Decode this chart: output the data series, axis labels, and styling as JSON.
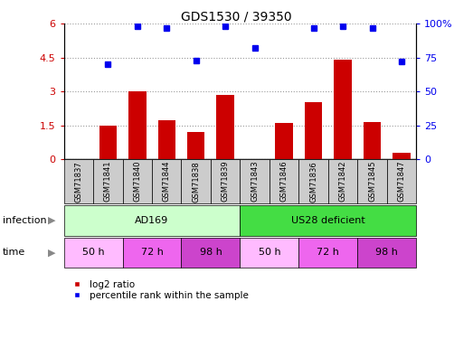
{
  "title": "GDS1530 / 39350",
  "samples": [
    "GSM71837",
    "GSM71841",
    "GSM71840",
    "GSM71844",
    "GSM71838",
    "GSM71839",
    "GSM71843",
    "GSM71846",
    "GSM71836",
    "GSM71842",
    "GSM71845",
    "GSM71847"
  ],
  "log2_ratio": [
    0.0,
    1.5,
    3.0,
    1.75,
    1.2,
    2.85,
    0.0,
    1.6,
    2.55,
    4.4,
    1.65,
    0.3
  ],
  "percentile_rank": [
    null,
    70,
    98,
    97,
    73,
    98,
    82,
    null,
    97,
    98,
    97,
    72
  ],
  "bar_color": "#cc0000",
  "dot_color": "#0000ee",
  "ylim_left": [
    0,
    6
  ],
  "ylim_right": [
    0,
    100
  ],
  "yticks_left": [
    0,
    1.5,
    3.0,
    4.5,
    6.0
  ],
  "yticks_right": [
    0,
    25,
    50,
    75,
    100
  ],
  "ytick_labels_left": [
    "0",
    "1.5",
    "3",
    "4.5",
    "6"
  ],
  "ytick_labels_right": [
    "0",
    "25",
    "50",
    "75",
    "100%"
  ],
  "infection_groups": [
    {
      "label": "AD169",
      "start": 0,
      "end": 6,
      "color": "#ccffcc"
    },
    {
      "label": "US28 deficient",
      "start": 6,
      "end": 12,
      "color": "#44dd44"
    }
  ],
  "time_groups": [
    {
      "label": "50 h",
      "start": 0,
      "end": 2,
      "color": "#ffbbff"
    },
    {
      "label": "72 h",
      "start": 2,
      "end": 4,
      "color": "#ee66ee"
    },
    {
      "label": "98 h",
      "start": 4,
      "end": 6,
      "color": "#cc44cc"
    },
    {
      "label": "50 h",
      "start": 6,
      "end": 8,
      "color": "#ffbbff"
    },
    {
      "label": "72 h",
      "start": 8,
      "end": 10,
      "color": "#ee66ee"
    },
    {
      "label": "98 h",
      "start": 10,
      "end": 12,
      "color": "#cc44cc"
    }
  ],
  "infection_label": "infection",
  "time_label": "time",
  "legend_bar_label": "log2 ratio",
  "legend_dot_label": "percentile rank within the sample",
  "grid_color": "#999999",
  "sample_box_color": "#cccccc"
}
